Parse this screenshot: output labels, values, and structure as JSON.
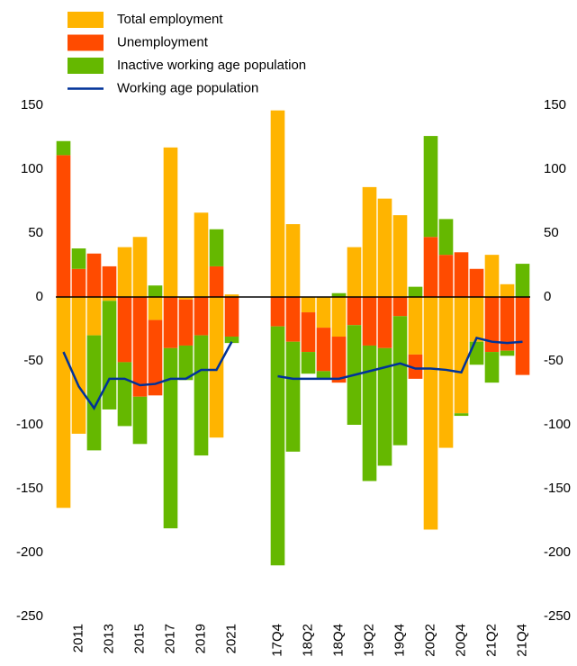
{
  "chart_data": {
    "type": "bar",
    "stacked": true,
    "categories": [
      null,
      "2011",
      null,
      "2013",
      null,
      "2015",
      null,
      "2017",
      null,
      "2019",
      null,
      "2021",
      null,
      null,
      "17Q4",
      null,
      "18Q2",
      null,
      "18Q4",
      null,
      "19Q2",
      null,
      "19Q4",
      null,
      "20Q2",
      null,
      "20Q4",
      null,
      "21Q2",
      null,
      "21Q4"
    ],
    "series": [
      {
        "name": "Total employment",
        "type": "bar",
        "color": "#FFB400",
        "values": [
          -165,
          -107,
          -30,
          -3,
          39,
          47,
          -18,
          117,
          -2,
          66,
          -110,
          2,
          null,
          null,
          146,
          57,
          -12,
          -24,
          -31,
          39,
          86,
          77,
          64,
          -45,
          -182,
          -118,
          -91,
          -35,
          33,
          10,
          0
        ]
      },
      {
        "name": "Unemployment",
        "type": "bar",
        "color": "#FF4B00",
        "values": [
          111,
          22,
          34,
          24,
          -51,
          -78,
          -59,
          -40,
          -36,
          -30,
          24,
          -31,
          null,
          null,
          -23,
          -35,
          -31,
          -34,
          -36,
          -22,
          -38,
          -40,
          -15,
          -19,
          47,
          33,
          35,
          22,
          -43,
          -42,
          -61
        ]
      },
      {
        "name": "Inactive working age population",
        "type": "bar",
        "color": "#65B800",
        "values": [
          11,
          16,
          -90,
          -85,
          -50,
          -37,
          9,
          -141,
          -27,
          -94,
          29,
          -5,
          null,
          null,
          -187,
          -86,
          -17,
          -6,
          3,
          -78,
          -106,
          -92,
          -101,
          8,
          79,
          28,
          -2,
          -18,
          -24,
          -4,
          26
        ]
      },
      {
        "name": "Working age population",
        "type": "line",
        "color": "#003299",
        "values": [
          -43,
          -70,
          -87,
          -64,
          -64,
          -69,
          -68,
          -64,
          -64,
          -57,
          -57,
          -35,
          null,
          null,
          -62,
          -64,
          -64,
          -64,
          -64,
          -61,
          -58,
          -55,
          -52,
          -56,
          -56,
          -57,
          -59,
          -32,
          -35,
          -36,
          -35
        ]
      }
    ],
    "ylim": [
      -250,
      150
    ],
    "yticks": [
      -250,
      -200,
      -150,
      -100,
      -50,
      0,
      50,
      100,
      150
    ],
    "y2lim": [
      -250,
      150
    ],
    "y2ticks": [
      -250,
      -200,
      -150,
      -100,
      -50,
      0,
      50,
      100,
      150
    ],
    "legend": "top-left"
  }
}
